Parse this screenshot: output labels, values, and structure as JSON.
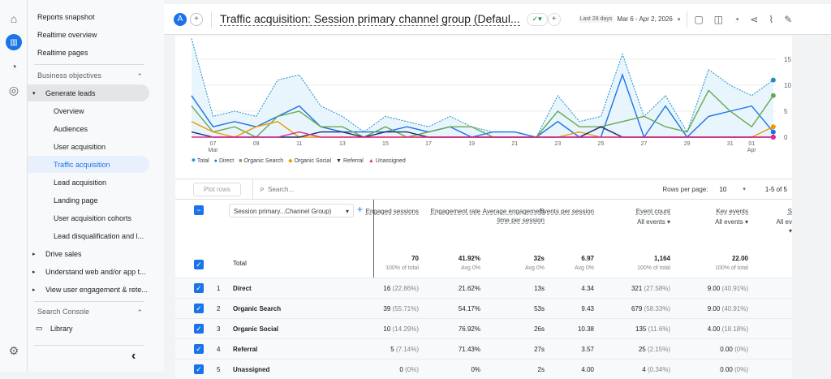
{
  "nav": {
    "items": [
      {
        "label": "Reports snapshot"
      },
      {
        "label": "Realtime overview"
      },
      {
        "label": "Realtime pages"
      },
      {
        "label": "Business objectives"
      },
      {
        "label": "Generate leads"
      },
      {
        "label": "Overview"
      },
      {
        "label": "Audiences"
      },
      {
        "label": "User acquisition"
      },
      {
        "label": "Traffic acquisition"
      },
      {
        "label": "Lead acquisition"
      },
      {
        "label": "Landing page"
      },
      {
        "label": "User acquisition cohorts"
      },
      {
        "label": "Lead disqualification and l..."
      },
      {
        "label": "Drive sales"
      },
      {
        "label": "Understand web and/or app t..."
      },
      {
        "label": "View user engagement & rete..."
      },
      {
        "label": "Search Console"
      },
      {
        "label": "Library"
      }
    ]
  },
  "header": {
    "avatar": "A",
    "title": "Traffic acquisition: Session primary channel group (Defaul...",
    "date_prefix": "Last 28 days",
    "date_range": "Mar 6 - Apr 2, 2026"
  },
  "toolbar": {
    "plot_rows": "Plot rows",
    "search_placeholder": "Search...",
    "rows_per_page_label": "Rows per page:",
    "rows_per_page": "10",
    "pagination": "1-5 of 5",
    "dimension": "Session primary...Channel Group)"
  },
  "columns": [
    {
      "label": "Engaged sessions"
    },
    {
      "label": "Engagement rate"
    },
    {
      "label": "Average engagement time per session"
    },
    {
      "label": "Events per session"
    },
    {
      "label": "Event count",
      "sub": "All events"
    },
    {
      "label": "Key events",
      "sub": "All events"
    },
    {
      "label": "S",
      "sub": "All ev"
    }
  ],
  "total": {
    "label": "Total",
    "values": [
      "70",
      "41.92%",
      "32s",
      "6.97",
      "1,164",
      "22.00"
    ],
    "subs": [
      "100% of total",
      "Avg 0%",
      "Avg 0%",
      "Avg 0%",
      "100% of total",
      "100% of total"
    ]
  },
  "rows": [
    {
      "n": "1",
      "name": "Direct",
      "c": [
        "16",
        "(22.86%)",
        "21.62%",
        "13s",
        "4.34",
        "321",
        "(27.58%)",
        "9.00",
        "(40.91%)"
      ]
    },
    {
      "n": "2",
      "name": "Organic Search",
      "c": [
        "39",
        "(55.71%)",
        "54.17%",
        "53s",
        "9.43",
        "679",
        "(58.33%)",
        "9.00",
        "(40.91%)"
      ]
    },
    {
      "n": "3",
      "name": "Organic Social",
      "c": [
        "10",
        "(14.29%)",
        "76.92%",
        "26s",
        "10.38",
        "135",
        "(11.6%)",
        "4.00",
        "(18.18%)"
      ]
    },
    {
      "n": "4",
      "name": "Referral",
      "c": [
        "5",
        "(7.14%)",
        "71.43%",
        "27s",
        "3.57",
        "25",
        "(2.15%)",
        "0.00",
        "(0%)"
      ]
    },
    {
      "n": "5",
      "name": "Unassigned",
      "c": [
        "0",
        "(0%)",
        "0%",
        "2s",
        "4.00",
        "4",
        "(0.34%)",
        "0.00",
        "(0%)"
      ]
    }
  ],
  "chart_data": {
    "type": "line",
    "x": [
      "Mar 6",
      "Mar 7",
      "Mar 8",
      "Mar 9",
      "Mar 10",
      "Mar 11",
      "Mar 12",
      "Mar 13",
      "Mar 14",
      "Mar 15",
      "Mar 16",
      "Mar 17",
      "Mar 18",
      "Mar 19",
      "Mar 20",
      "Mar 21",
      "Mar 22",
      "Mar 23",
      "Mar 24",
      "Mar 25",
      "Mar 26",
      "Mar 27",
      "Mar 28",
      "Mar 29",
      "Mar 30",
      "Mar 31",
      "Apr 1",
      "Apr 2"
    ],
    "x_ticks": [
      {
        "i": 1,
        "label": "07",
        "sub": "Mar"
      },
      {
        "i": 3,
        "label": "09"
      },
      {
        "i": 5,
        "label": "11"
      },
      {
        "i": 7,
        "label": "13"
      },
      {
        "i": 9,
        "label": "15"
      },
      {
        "i": 11,
        "label": "17"
      },
      {
        "i": 13,
        "label": "19"
      },
      {
        "i": 15,
        "label": "21"
      },
      {
        "i": 17,
        "label": "23"
      },
      {
        "i": 19,
        "label": "25"
      },
      {
        "i": 21,
        "label": "27"
      },
      {
        "i": 23,
        "label": "29"
      },
      {
        "i": 25,
        "label": "31"
      },
      {
        "i": 26,
        "label": "01",
        "sub": "Apr"
      }
    ],
    "y_ticks": [
      "0",
      "5",
      "10",
      "15"
    ],
    "ylim": [
      0,
      19
    ],
    "grid": true,
    "legend": "bottom-left",
    "series": [
      {
        "name": "Total",
        "color": "#1e8fc2",
        "values": [
          19,
          4,
          5,
          4,
          11,
          12,
          6,
          4,
          1,
          4,
          3,
          2,
          4,
          2,
          1,
          1,
          0,
          8,
          3,
          4,
          16,
          4,
          8,
          1,
          13,
          10,
          8,
          11
        ]
      },
      {
        "name": "Direct",
        "color": "#1a73e8",
        "values": [
          8,
          2,
          3,
          2,
          4,
          6,
          2,
          1,
          1,
          1,
          2,
          1,
          2,
          0,
          1,
          1,
          0,
          3,
          0,
          0,
          12,
          0,
          6,
          0,
          4,
          5,
          6,
          1
        ]
      },
      {
        "name": "Organic Search",
        "color": "#6aa84f",
        "values": [
          6,
          1,
          2,
          0,
          4,
          5,
          2,
          2,
          0,
          2,
          0,
          1,
          2,
          2,
          0,
          0,
          0,
          5,
          2,
          2,
          3,
          4,
          2,
          1,
          9,
          5,
          2,
          8
        ]
      },
      {
        "name": "Organic Social",
        "color": "#f29900",
        "values": [
          3,
          1,
          0,
          2,
          3,
          0,
          0,
          0,
          0,
          0,
          0,
          0,
          0,
          0,
          0,
          0,
          0,
          0,
          1,
          0,
          0,
          0,
          0,
          0,
          0,
          0,
          0,
          2
        ]
      },
      {
        "name": "Referral",
        "color": "#1f2a6b",
        "values": [
          1,
          0,
          0,
          0,
          0,
          0,
          1,
          1,
          0,
          1,
          1,
          0,
          0,
          0,
          0,
          0,
          0,
          0,
          0,
          2,
          0,
          0,
          0,
          0,
          0,
          0,
          0,
          0
        ]
      },
      {
        "name": "Unassigned",
        "color": "#e52592",
        "values": [
          0,
          0,
          0,
          0,
          0,
          1,
          0,
          0,
          0,
          0,
          0,
          0,
          0,
          0,
          0,
          0,
          0,
          0,
          0,
          0,
          0,
          0,
          0,
          0,
          0,
          0,
          0,
          0
        ]
      }
    ]
  }
}
